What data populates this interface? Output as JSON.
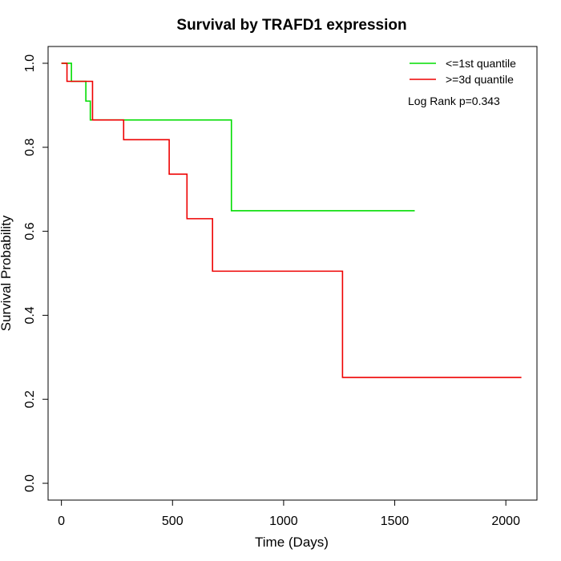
{
  "chart_data": {
    "type": "line",
    "title": "Survival by TRAFD1 expression",
    "xlabel": "Time (Days)",
    "ylabel": "Survival Probability",
    "xlim": [
      -60,
      2140
    ],
    "ylim": [
      -0.04,
      1.04
    ],
    "xticks": [
      0,
      500,
      1000,
      1500,
      2000
    ],
    "yticks": [
      0.0,
      0.2,
      0.4,
      0.6,
      0.8,
      1.0
    ],
    "xtick_labels": [
      "0",
      "500",
      "1000",
      "1500",
      "2000"
    ],
    "ytick_labels": [
      "0.0",
      "0.2",
      "0.4",
      "0.6",
      "0.8",
      "1.0"
    ],
    "grid": false,
    "legend_position": "top-right",
    "annotation": "Log Rank p=0.343",
    "series": [
      {
        "name": "<=1st quantile",
        "color": "#00dd00",
        "step": true,
        "x": [
          0,
          45,
          110,
          130,
          765,
          1590
        ],
        "y": [
          1.0,
          0.957,
          0.91,
          0.865,
          0.649,
          0.649
        ]
      },
      {
        "name": ">=3d quantile",
        "color": "#ee0000",
        "step": true,
        "x": [
          0,
          25,
          140,
          280,
          485,
          565,
          680,
          1265,
          2070
        ],
        "y": [
          1.0,
          0.957,
          0.865,
          0.818,
          0.736,
          0.63,
          0.505,
          0.252,
          0.252
        ]
      }
    ]
  }
}
